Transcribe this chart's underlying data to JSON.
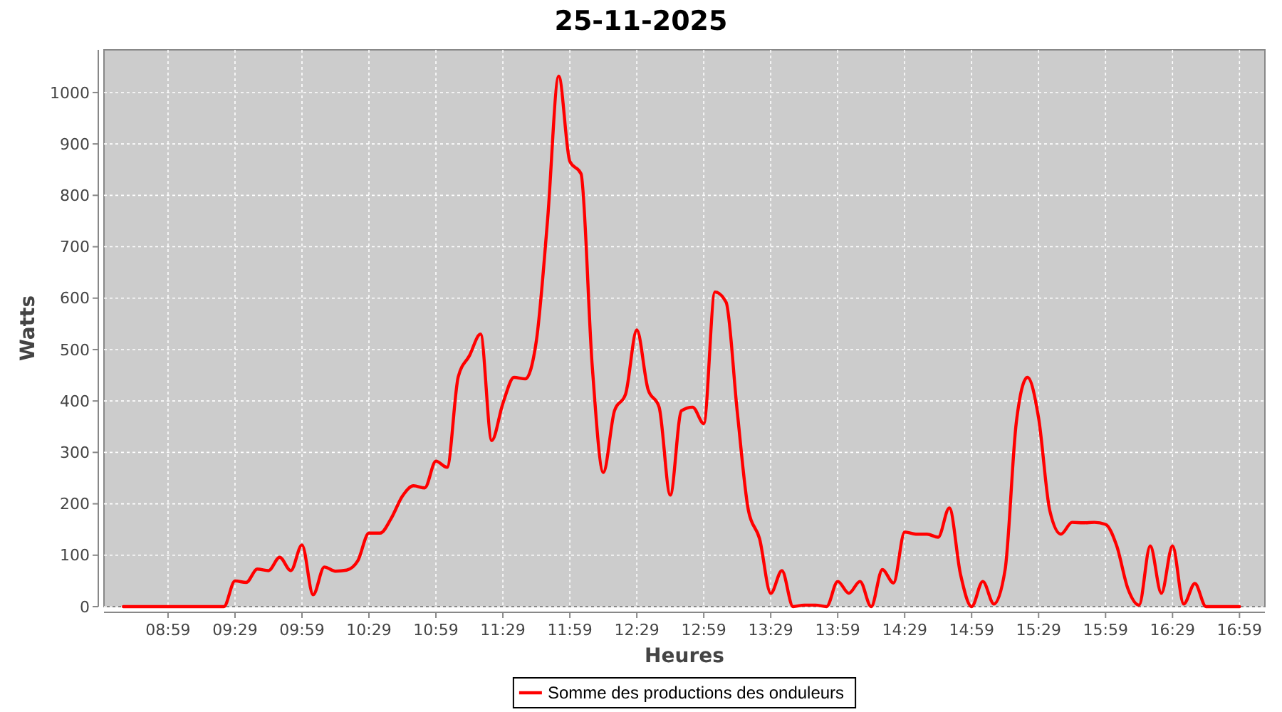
{
  "chart_data": {
    "type": "line",
    "title": "25-11-2025",
    "xlabel": "Heures",
    "ylabel": "Watts",
    "x": [
      8.65,
      8.7333,
      8.8167,
      8.9,
      8.9833,
      9.0667,
      9.15,
      9.2333,
      9.3167,
      9.4,
      9.4833,
      9.5667,
      9.65,
      9.7333,
      9.8167,
      9.9,
      9.9833,
      10.0667,
      10.15,
      10.2333,
      10.3167,
      10.4,
      10.4833,
      10.5667,
      10.65,
      10.7333,
      10.8167,
      10.9,
      10.9833,
      11.0667,
      11.15,
      11.2333,
      11.3167,
      11.4,
      11.4833,
      11.5667,
      11.65,
      11.7333,
      11.8167,
      11.9,
      11.9833,
      12.0667,
      12.15,
      12.2333,
      12.3167,
      12.4,
      12.4833,
      12.5667,
      12.65,
      12.7333,
      12.8167,
      12.9,
      12.9833,
      13.0667,
      13.15,
      13.2333,
      13.3167,
      13.4,
      13.4833,
      13.5667,
      13.65,
      13.7333,
      13.8167,
      13.9,
      13.9833,
      14.0667,
      14.15,
      14.2333,
      14.3167,
      14.4,
      14.4833,
      14.5667,
      14.65,
      14.7333,
      14.8167,
      14.9,
      14.9833,
      15.0667,
      15.15,
      15.2333,
      15.3167,
      15.4,
      15.4833,
      15.5667,
      15.65,
      15.7333,
      15.8167,
      15.9,
      15.9833,
      16.0667,
      16.15,
      16.2333,
      16.3167,
      16.4,
      16.4833,
      16.5667,
      16.65,
      16.7333,
      16.8167,
      16.9,
      16.9833
    ],
    "series": [
      {
        "name": "Somme des productions des onduleurs",
        "color": "#ff0000",
        "values": [
          0,
          0,
          0,
          0,
          0,
          0,
          0,
          0,
          0,
          0,
          50,
          47,
          73,
          70,
          96,
          70,
          120,
          23,
          77,
          69,
          71,
          89,
          143,
          143,
          172,
          215,
          235,
          231,
          283,
          271,
          447,
          488,
          530,
          323,
          395,
          446,
          443,
          517,
          751,
          1032,
          866,
          842,
          470,
          261,
          381,
          414,
          538,
          423,
          388,
          217,
          381,
          388,
          356,
          612,
          592,
          379,
          187,
          132,
          26,
          70,
          0,
          3,
          3,
          0,
          49,
          26,
          49,
          0,
          72,
          46,
          145,
          141,
          141,
          135,
          192,
          63,
          0,
          49,
          5,
          72,
          358,
          446,
          367,
          187,
          141,
          164,
          163,
          164,
          160,
          118,
          35,
          3,
          118,
          26,
          118,
          5,
          45,
          0,
          0,
          0,
          0
        ]
      }
    ],
    "xlim": [
      8.505,
      17.173
    ],
    "xticks": [
      {
        "value": 8.9833,
        "label": "08:59"
      },
      {
        "value": 9.4833,
        "label": "09:29"
      },
      {
        "value": 9.9833,
        "label": "09:59"
      },
      {
        "value": 10.4833,
        "label": "10:29"
      },
      {
        "value": 10.9833,
        "label": "10:59"
      },
      {
        "value": 11.4833,
        "label": "11:29"
      },
      {
        "value": 11.9833,
        "label": "11:59"
      },
      {
        "value": 12.4833,
        "label": "12:29"
      },
      {
        "value": 12.9833,
        "label": "12:59"
      },
      {
        "value": 13.4833,
        "label": "13:29"
      },
      {
        "value": 13.9833,
        "label": "13:59"
      },
      {
        "value": 14.4833,
        "label": "14:29"
      },
      {
        "value": 14.9833,
        "label": "14:59"
      },
      {
        "value": 15.4833,
        "label": "15:29"
      },
      {
        "value": 15.9833,
        "label": "15:59"
      },
      {
        "value": 16.4833,
        "label": "16:29"
      },
      {
        "value": 16.9833,
        "label": "16:59"
      }
    ],
    "ylim": [
      0,
      1083
    ],
    "yticks": [
      0,
      100,
      200,
      300,
      400,
      500,
      600,
      700,
      800,
      900,
      1000
    ],
    "grid": true,
    "legend": "bottom",
    "line_style": "solid"
  }
}
